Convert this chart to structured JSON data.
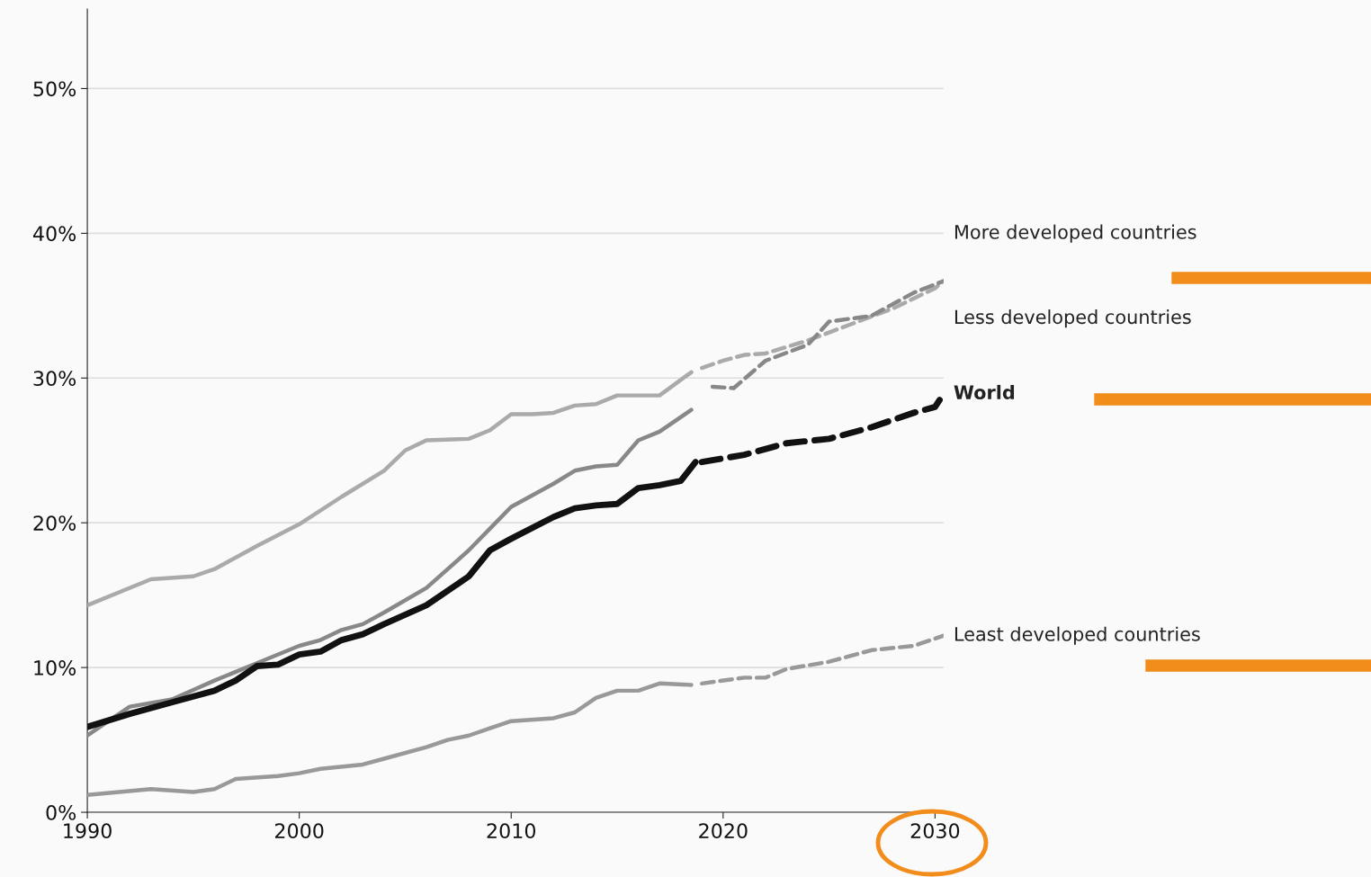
{
  "chart_data": {
    "type": "line",
    "xlim": [
      1990,
      2030.4
    ],
    "xticks": [
      1990,
      2000,
      2010,
      2020,
      2030
    ],
    "ylim": [
      0,
      55.5
    ],
    "yticks": [
      {
        "value": 0,
        "label": "0%"
      },
      {
        "value": 10,
        "label": "10%"
      },
      {
        "value": 20,
        "label": "20%"
      },
      {
        "value": 30,
        "label": "30%"
      },
      {
        "value": 40,
        "label": "40%"
      },
      {
        "value": 50,
        "label": "50%"
      }
    ],
    "grid": "y",
    "series": [
      {
        "name": "More developed countries",
        "color": "#aaaaaa",
        "line_style": "solid",
        "x": [
          1990,
          1993,
          1995,
          1996,
          1998,
          2000,
          2002,
          2004,
          2005,
          2006,
          2008,
          2009,
          2010,
          2011,
          2012,
          2013,
          2014,
          2015,
          2017,
          2018.5
        ],
        "values": [
          14.3,
          16.1,
          16.3,
          16.8,
          18.4,
          19.9,
          21.8,
          23.6,
          25.0,
          25.7,
          25.8,
          26.4,
          27.5,
          27.5,
          27.6,
          28.1,
          28.2,
          28.8,
          28.8,
          30.4
        ]
      },
      {
        "color": "#aaaaaa",
        "line_style": "dashed",
        "x": [
          2019,
          2020,
          2021,
          2022,
          2024,
          2026,
          2028,
          2030,
          2030.4
        ],
        "values": [
          30.7,
          31.2,
          31.6,
          31.7,
          32.6,
          33.7,
          34.8,
          36.2,
          36.7
        ]
      },
      {
        "name": "Less developed countries",
        "color": "#888888",
        "line_style": "solid",
        "x": [
          1990,
          1992,
          1994,
          1996,
          1998,
          2000,
          2001,
          2002,
          2003,
          2004,
          2006,
          2008,
          2009,
          2010,
          2012,
          2013,
          2014,
          2015,
          2016,
          2017,
          2018.5
        ],
        "values": [
          5.3,
          7.3,
          7.8,
          9.1,
          10.3,
          11.5,
          11.9,
          12.6,
          13.0,
          13.8,
          15.5,
          18.1,
          19.6,
          21.1,
          22.7,
          23.6,
          23.9,
          24.0,
          25.7,
          26.3,
          27.8
        ]
      },
      {
        "color": "#888888",
        "line_style": "dashed",
        "x": [
          2019.5,
          2020.5,
          2022,
          2024,
          2025,
          2027,
          2029,
          2030.4
        ],
        "values": [
          29.4,
          29.3,
          31.2,
          32.3,
          33.9,
          34.3,
          35.9,
          36.7
        ]
      },
      {
        "name": "World",
        "color": "#111111",
        "line_style": "solid",
        "x": [
          1990,
          1992,
          1994,
          1996,
          1997,
          1998,
          1999,
          2000,
          2001,
          2002,
          2003,
          2004,
          2006,
          2008,
          2009,
          2010,
          2012,
          2013,
          2014,
          2015,
          2016,
          2017,
          2018,
          2018.7
        ],
        "values": [
          5.9,
          6.8,
          7.6,
          8.4,
          9.1,
          10.1,
          10.2,
          10.9,
          11.1,
          11.9,
          12.3,
          13.0,
          14.3,
          16.3,
          18.1,
          18.9,
          20.4,
          21.0,
          21.2,
          21.3,
          22.4,
          22.6,
          22.9,
          24.2
        ]
      },
      {
        "color": "#111111",
        "line_style": "dashed",
        "x": [
          2019,
          2021,
          2023,
          2025,
          2027,
          2029,
          2030,
          2030.4
        ],
        "values": [
          24.2,
          24.7,
          25.5,
          25.8,
          26.6,
          27.6,
          28.0,
          28.9
        ]
      },
      {
        "name": "Least developed countries",
        "color": "#999999",
        "line_style": "solid",
        "x": [
          1990,
          1993,
          1995,
          1996,
          1997,
          1999,
          2000,
          2001,
          2003,
          2004,
          2006,
          2007,
          2008,
          2009,
          2010,
          2012,
          2013,
          2014,
          2015,
          2016,
          2017,
          2018.5
        ],
        "values": [
          1.2,
          1.6,
          1.4,
          1.6,
          2.3,
          2.5,
          2.7,
          3.0,
          3.3,
          3.7,
          4.5,
          5.0,
          5.3,
          5.8,
          6.3,
          6.5,
          6.9,
          7.9,
          8.4,
          8.4,
          8.9,
          8.8
        ]
      },
      {
        "color": "#999999",
        "line_style": "dashed",
        "x": [
          2019,
          2021,
          2022,
          2023,
          2025,
          2027,
          2029,
          2030.4
        ],
        "values": [
          8.9,
          9.3,
          9.3,
          9.9,
          10.4,
          11.2,
          11.5,
          12.2
        ]
      }
    ]
  }
}
